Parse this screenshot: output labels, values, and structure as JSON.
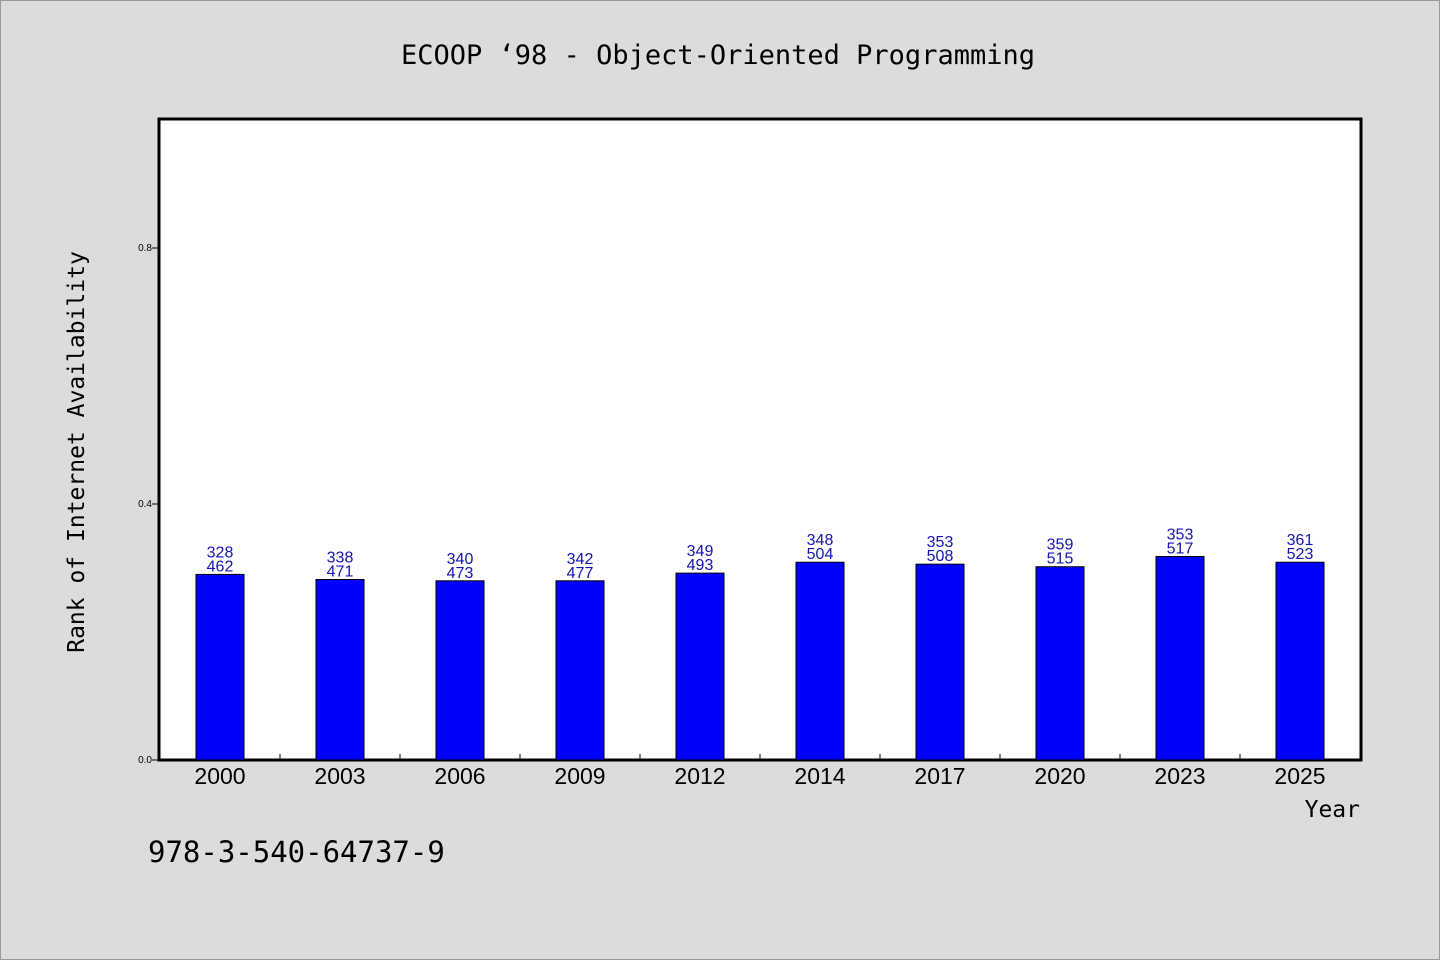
{
  "chart_data": {
    "type": "bar",
    "title": "ECOOP  ‘98 - Object-Oriented Programming",
    "xlabel": "Year",
    "ylabel": "Rank of Internet Availability",
    "categories": [
      "2000",
      "2003",
      "2006",
      "2009",
      "2012",
      "2014",
      "2017",
      "2020",
      "2023",
      "2025"
    ],
    "values": [
      0.29,
      0.282,
      0.28,
      0.28,
      0.292,
      0.309,
      0.306,
      0.302,
      0.318,
      0.309
    ],
    "bar_labels": [
      [
        "328",
        "462"
      ],
      [
        "338",
        "471"
      ],
      [
        "340",
        "473"
      ],
      [
        "342",
        "477"
      ],
      [
        "349",
        "493"
      ],
      [
        "348",
        "504"
      ],
      [
        "353",
        "508"
      ],
      [
        "359",
        "515"
      ],
      [
        "353",
        "517"
      ],
      [
        "361",
        "523"
      ]
    ],
    "yticks": [
      "0.0",
      "0.4",
      "0.8"
    ],
    "ylim": [
      0,
      1.0
    ],
    "grid": false,
    "legend": "none",
    "colors": {
      "bar": "#0000ff",
      "label": "#1414b4",
      "background": "#dcdcdc",
      "plot": "#ffffff"
    }
  },
  "footer": {
    "isbn": "978-3-540-64737-9"
  }
}
